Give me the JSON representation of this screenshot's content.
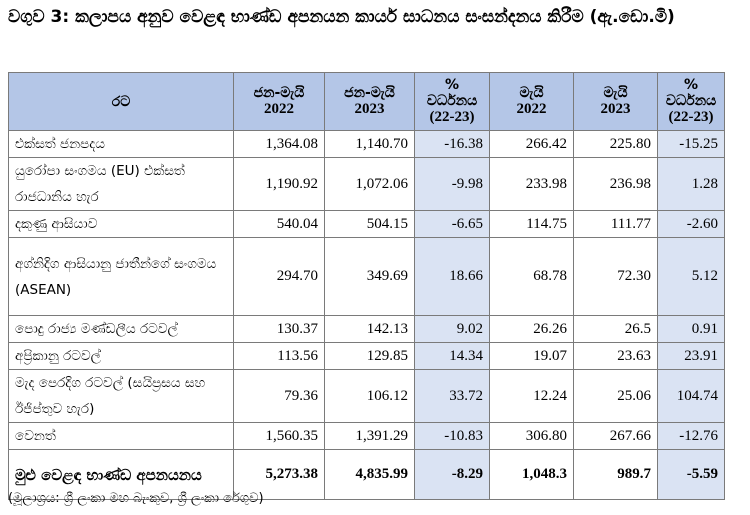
{
  "title": "වගුව 3: කලාපය අනුව වෙළඳ භාණ්ඩ අපනයන කාර්ය සාධනය සංසන්දනය කිරීම (ඇ.ඩො.මි)",
  "headers": {
    "region": "රට",
    "col1": {
      "label": "ජන-මැයි",
      "year": "2022"
    },
    "col2": {
      "label": "ජන-මැයි",
      "year": "2023"
    },
    "col3": {
      "sym": "%",
      "label": "වර්ධනය",
      "range": "(22-23)"
    },
    "col4": {
      "label": "මැයි",
      "year": "2022"
    },
    "col5": {
      "label": "මැයි",
      "year": "2023"
    },
    "col6": {
      "sym": "%",
      "label": "වර්ධනය",
      "range": "(22-23)"
    }
  },
  "rows": [
    {
      "region": "එක්සත් ජනපදය",
      "v1": "1,364.08",
      "v2": "1,140.70",
      "g1": "-16.38",
      "v4": "266.42",
      "v5": "225.80",
      "g2": "-15.25"
    },
    {
      "region": "යුරෝපා සංගමය (EU) එක්සත් රාජධානිය හැර",
      "v1": "1,190.92",
      "v2": "1,072.06",
      "g1": "-9.98",
      "v4": "233.98",
      "v5": "236.98",
      "g2": "1.28"
    },
    {
      "region": "දකුණු ආසියාව",
      "v1": "540.04",
      "v2": "504.15",
      "g1": "-6.65",
      "v4": "114.75",
      "v5": "111.77",
      "g2": "-2.60"
    },
    {
      "region": "අග්නිදිග ආසියානු ජාතීන්ගේ සංගමය (ASEAN)",
      "v1": "294.70",
      "v2": "349.69",
      "g1": "18.66",
      "v4": "68.78",
      "v5": "72.30",
      "g2": "5.12"
    },
    {
      "region": "පොදු රාජ්‍ය මණ්ඩලීය රටවල්",
      "v1": "130.37",
      "v2": "142.13",
      "g1": "9.02",
      "v4": "26.26",
      "v5": "26.5",
      "g2": "0.91"
    },
    {
      "region": "අප්‍රිකානු රටවල්",
      "v1": "113.56",
      "v2": "129.85",
      "g1": "14.34",
      "v4": "19.07",
      "v5": "23.63",
      "g2": "23.91"
    },
    {
      "region": "මැද පෙරදිග රටවල් (සයිප්‍රසය සහ ඊජිප්තුව හැර)",
      "v1": "79.36",
      "v2": "106.12",
      "g1": "33.72",
      "v4": "12.24",
      "v5": "25.06",
      "g2": "104.74"
    },
    {
      "region": "වෙනත්",
      "v1": "1,560.35",
      "v2": "1,391.29",
      "g1": "-10.83",
      "v4": "306.80",
      "v5": "267.66",
      "g2": "-12.76"
    }
  ],
  "total": {
    "region": "මුළු වෙළඳ භාණ්ඩ අපනයනය",
    "v1": "5,273.38",
    "v2": "4,835.99",
    "g1": "-8.29",
    "v4": "1,048.3",
    "v5": "989.7",
    "g2": "-5.59"
  },
  "source": "(මූලාශ්‍රය: ශ්‍රී ලංකා මහ බැංකුව, ශ්‍රී ලංකා රේගුව)"
}
